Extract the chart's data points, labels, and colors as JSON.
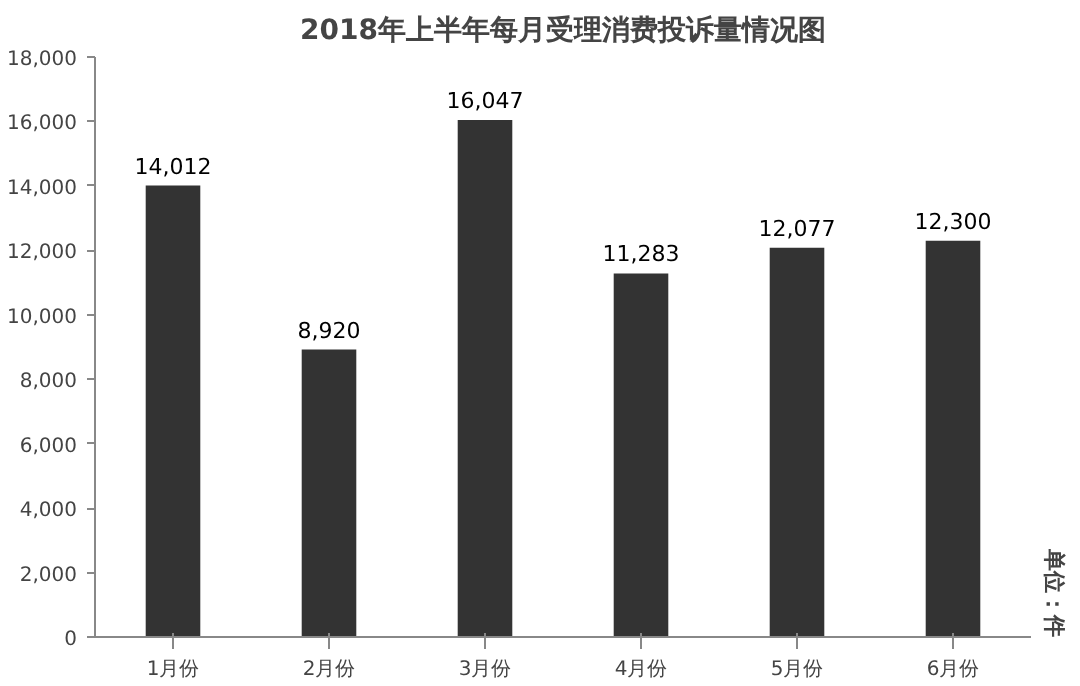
{
  "chart_data": {
    "type": "bar",
    "title": "2018年上半年每月受理消费投诉量情况图",
    "categories": [
      "1月份",
      "2月份",
      "3月份",
      "4月份",
      "5月份",
      "6月份"
    ],
    "values": [
      14012,
      8920,
      16047,
      11283,
      12077,
      12300
    ],
    "color": "#333333",
    "ylim": [
      0,
      18000
    ],
    "yticks": [
      0,
      {
        "value": 2000,
        "label": "2,000"
      },
      {
        "value": 4000,
        "label": "4,000"
      },
      {
        "value": 6000,
        "label": "6,000"
      },
      {
        "value": 8000,
        "label": "8,000"
      },
      {
        "value": 10000,
        "label": "10,000"
      },
      {
        "value": 12000,
        "label": "12,000"
      },
      {
        "value": 14000,
        "label": "14,000"
      },
      {
        "value": 16000,
        "label": "16,000"
      },
      {
        "value": 18000,
        "label": "18,000"
      }
    ],
    "value_labels": [
      "14,012",
      "8,920",
      "16,047",
      "11,283",
      "12,077",
      "12,300"
    ],
    "grid": false,
    "annotations": [
      "单位：件"
    ]
  }
}
